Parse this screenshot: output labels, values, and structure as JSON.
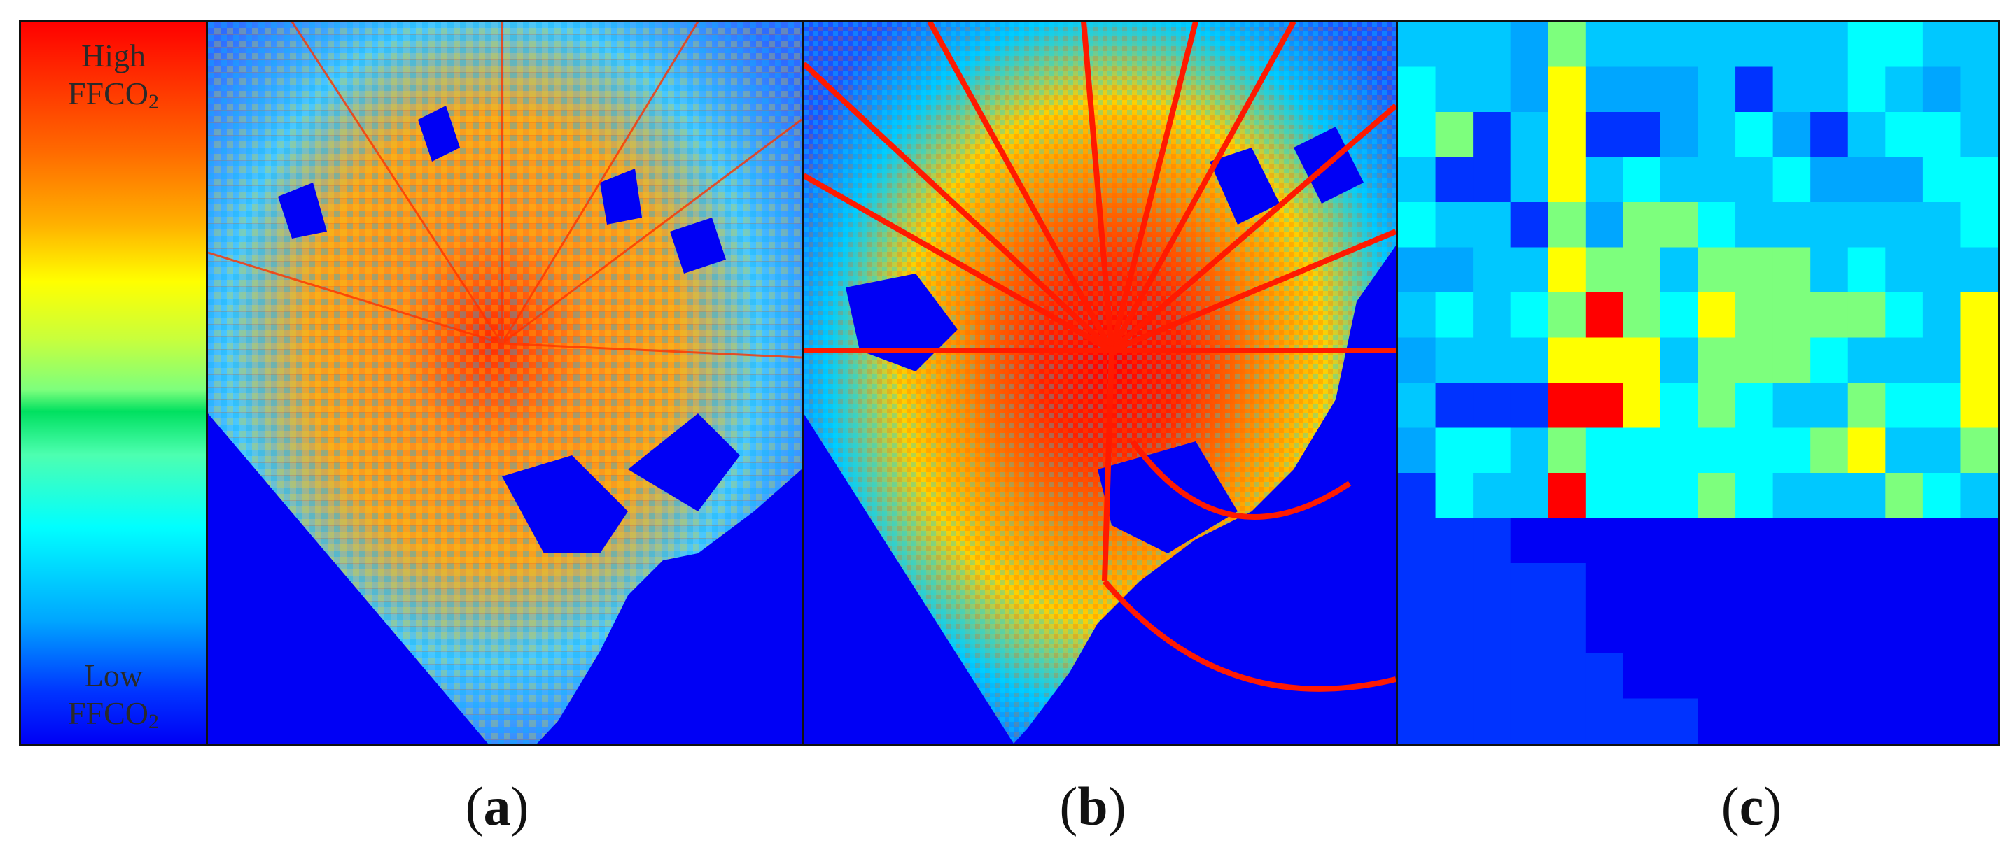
{
  "legend": {
    "high_line1": "High",
    "high_line2": "FFCO",
    "low_line1": "Low",
    "low_line2": "FFCO",
    "subscript": "2"
  },
  "panels": [
    {
      "id": "a",
      "letter": "a"
    },
    {
      "id": "b",
      "letter": "b"
    },
    {
      "id": "c",
      "letter": "c"
    }
  ],
  "colors": {
    "background_water": "#0000f5",
    "low": "#0033ff",
    "lowmid": "#00a6ff",
    "cyan": "#00ffff",
    "green": "#7dff7d",
    "yellow": "#ffff00",
    "orange": "#ffb000",
    "highorange": "#ff6a00",
    "high": "#ff0000"
  },
  "grid_c": {
    "size": 16,
    "cells": [
      "5554755555556655",
      "6554844453556545",
      "6735833456435665",
      "5335856555644466",
      "6553747765555556",
      "4455877577756555",
      "5656797687777658",
      "4555888577765558",
      "5333998676557668",
      "4665766666678557",
      "3655966676555765",
      "3330000000000000",
      "3333300000000000",
      "3333300000000000",
      "3333330000000000",
      "3333333300000000"
    ]
  }
}
